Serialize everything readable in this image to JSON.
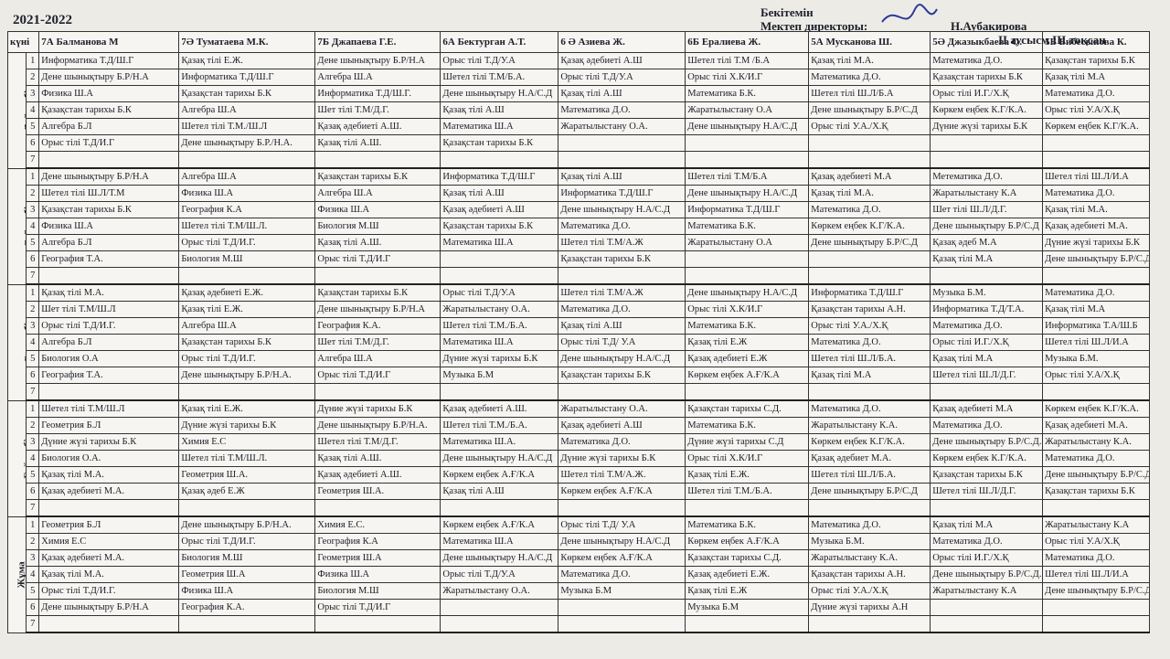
{
  "header": {
    "year": "2021-2022",
    "approve": "Бекітемін",
    "director_label": "Мектеп директоры:",
    "director_name": "Н.Аубакирова",
    "term": "II аусысм III тоқсан"
  },
  "table": {
    "day_header": "күні",
    "classes": [
      "7А Балманова М",
      "7Ә Туматаева М.К.",
      "7Б Джапаева Г.Е.",
      "6А Бектурган А.Т.",
      "6 Ә Азиева Ж.",
      "6Б Ералиева Ж.",
      "5А Мусканова Ш.",
      "5Ә Джазыкбаева О.",
      "5Б Бибесынова К."
    ],
    "lesson_numbers": [
      1,
      2,
      3,
      4,
      5,
      6,
      7
    ],
    "days": [
      {
        "name": "Дүйсенбі",
        "lessons": [
          [
            "Информатика Т.Д/Ш.Г",
            "Қазақ тілі Е.Ж.",
            "Дене шынықтыру Б.Р/Н.А",
            "Орыс тілі Т.Д/У.А",
            "Қазақ әдебиеті А.Ш",
            "Шетел тілі Т.М /Б.А",
            "Қазақ тілі М.А.",
            "Математика Д.О.",
            "Қазақстан тарихы Б.К"
          ],
          [
            "Дене шынықтыру Б.Р/Н.А",
            "Информатика Т.Д/Ш.Г",
            "Алгебра Ш.А",
            "Шетел тілі Т.М/Б.А.",
            "Орыс тілі Т.Д/У.А",
            "Орыс тілі Х.К/И.Г",
            "Математика Д.О.",
            "Қазақстан тарихы Б.К",
            "Қазақ тілі М.А"
          ],
          [
            "Физика Ш.А",
            "Қазақстан тарихы Б.К",
            "Информатика Т.Д/Ш.Г.",
            "Дене шынықтыру Н.А/С.Д",
            "Қазақ тілі А.Ш",
            "Математика Б.К.",
            "Шетел тілі Ш.Л/Б.А",
            "Орыс тілі И.Г./Х.Қ",
            "Математика Д.О."
          ],
          [
            "Қазақстан тарихы Б.К",
            "Алгебра Ш.А",
            "Шет тілі Т.М/Д.Г.",
            "Қазақ тілі А.Ш",
            "Математика Д.О.",
            "Жаратылыстану О.А",
            "Дене шынықтыру Б.Р/С.Д",
            "Көркем еңбек К.Г/К.А.",
            "Орыс тілі У.А/Х.Қ"
          ],
          [
            "Алгебра Б.Л",
            "Шетел тілі Т.М./Ш.Л",
            "Қазақ әдебиеті А.Ш.",
            "Математика Ш.А",
            "Жаратылыстану О.А.",
            "Дене шынықтыру Н.А/С.Д",
            "Орыс тілі У.А./Х.Қ",
            "Дүние жүзі тарихы Б.К",
            "Көркем еңбек К.Г/К.А."
          ],
          [
            "Орыс тілі Т.Д/И.Г",
            "Дене шынықтыру Б.Р./Н.А.",
            "Қазақ тілі А.Ш.",
            "Қазақстан тарихы Б.К",
            null,
            null,
            null,
            null,
            null
          ],
          [
            null,
            null,
            null,
            null,
            null,
            null,
            null,
            null,
            null
          ]
        ]
      },
      {
        "name": "Сейсенбі",
        "lessons": [
          [
            "Дене шынықтыру Б.Р/Н.А",
            "Алгебра Ш.А",
            "Қазақстан тарихы Б.К",
            "Информатика Т.Д/Ш.Г",
            "Қазақ тілі А.Ш",
            "Шетел тілі Т.М/Б.А",
            "Қазақ әдебиеті М.А",
            "Метематика Д.О.",
            "Шетел тілі Ш.Л/И.А"
          ],
          [
            "Шетел тілі Ш.Л/Т.М",
            "Физика Ш.А",
            "Алгебра Ш.А",
            "Қазақ тілі А.Ш",
            "Информатика Т.Д/Ш.Г",
            "Дене шынықтыру Н.А/С.Д",
            "Қазақ тілі М.А.",
            "Жаратылыстану К.А",
            "Математика Д.О."
          ],
          [
            "Қазақстан тарихы Б.К",
            "География К.А",
            "Физика Ш.А",
            "Қазақ әдебиеті А.Ш",
            "Дене шынықтыру Н.А/С.Д",
            "Информатика Т.Д/Ш.Г",
            "Математика Д.О.",
            "Шет тілі Ш.Л/Д.Г.",
            "Қазақ тілі М.А."
          ],
          [
            "Физика Ш.А",
            "Шетел тілі Т.М/Ш.Л.",
            "Биология М.Ш",
            "Қазақстан тарихы Б.К",
            "Математика Д.О.",
            "Математика Б.К.",
            "Көркем еңбек К.Г/К.А.",
            "Дене шынықтыру Б.Р/С.Д",
            "Қазақ әдебиеті М.А."
          ],
          [
            "Алгебра Б.Л",
            "Орыс тілі Т.Д/И.Г.",
            "Қазақ тілі А.Ш.",
            "Математика Ш.А",
            "Шетел тілі Т.М/А.Ж",
            "Жаратылыстану О.А",
            "Дене шынықтыру Б.Р/С.Д",
            "Қазақ әдеб М.А",
            "Дүние жүзі тарихы Б.К"
          ],
          [
            "География Т.А.",
            "Биология М.Ш",
            "Орыс тілі Т.Д/И.Г",
            null,
            "Қазақстан тарихы Б.К",
            null,
            null,
            "Қазақ тілі М.А",
            "Дене шынықтыру Б.Р/С.Д."
          ],
          [
            null,
            null,
            null,
            null,
            null,
            null,
            null,
            null,
            null
          ]
        ]
      },
      {
        "name": "Сәрсенбі",
        "lessons": [
          [
            "Қазақ тілі М.А.",
            "Қазақ әдебиеті Е.Ж.",
            "Қазақстан тарихы Б.К",
            "Орыс тілі Т.Д/У.А",
            "Шетел тілі Т.М/А.Ж",
            "Дене шынықтыру Н.А/С.Д",
            "Информатика Т.Д/Ш.Г",
            "Музыка Б.М.",
            "Математика Д.О."
          ],
          [
            "Шет тілі Т.М/Ш.Л",
            "Қазақ тілі Е.Ж.",
            "Дене шынықтыру Б.Р/Н.А",
            "Жаратылыстану О.А.",
            "Математика Д.О.",
            "Орыс тілі Х.К/И.Г",
            "Қазақстан тарихы А.Н.",
            "Информатика Т.Д/Т.А.",
            "Қазақ тілі М.А"
          ],
          [
            "Орыс тілі Т.Д/И.Г.",
            "Алгебра Ш.А",
            "География К.А.",
            "Шетел тілі Т.М./Б.А.",
            "Қазақ тілі А.Ш",
            "Математика Б.К.",
            "Орыс тілі У.А./Х.Қ",
            "Математика Д.О.",
            "Информатика Т.А/Ш.Б"
          ],
          [
            "Алгебра Б.Л",
            "Қазақстан тарихы Б.К",
            "Шет тілі Т.М/Д.Г.",
            "Математика Ш.А",
            "Орыс тілі Т.Д/ У.А",
            "Қазақ тілі Е.Ж",
            "Математика Д.О.",
            "Орыс тілі И.Г./Х.Қ",
            "Шетел тілі Ш.Л/И.А"
          ],
          [
            "Биология О.А",
            "Орыс тілі Т.Д/И.Г.",
            "Алгебра Ш.А",
            "Дүние жүзі тарихы Б.К",
            "Дене шынықтыру Н.А/С.Д",
            "Қазақ әдебиеті Е.Ж",
            "Шетел тілі Ш.Л/Б.А.",
            "Қазақ тілі М.А",
            "Музыка Б.М."
          ],
          [
            "География Т.А.",
            "Дене шынықтыру Б.Р/Н.А.",
            "Орыс тілі Т.Д/И.Г",
            "Музыка Б.М",
            "Қазақстан тарихы Б.К",
            "Көркем еңбек А.Ғ/К.А",
            "Қазақ тілі М.А",
            "Шетел тілі Ш.Л/Д.Г.",
            "Орыс тілі У.А/Х.Қ"
          ],
          [
            null,
            null,
            null,
            null,
            null,
            null,
            null,
            null,
            null
          ]
        ]
      },
      {
        "name": "Бейсенбі",
        "lessons": [
          [
            "Шетел тілі Т.М/Ш.Л",
            "Қазақ тілі Е.Ж.",
            "Дүние жүзі тарихы Б.К",
            "Қазақ әдебиеті А.Ш.",
            "Жаратылыстану О.А.",
            "Қазақстан тарихы С.Д.",
            "Математика Д.О.",
            "Қазақ әдебиеті М.А",
            "Көркем еңбек К.Г/К.А."
          ],
          [
            "Геометрия Б.Л",
            "Дүние жүзі тарихы Б.К",
            "Дене шынықтыру Б.Р/Н.А.",
            "Шетел тілі Т.М./Б.А.",
            "Қазақ әдебиеті А.Ш",
            "Математика Б.К.",
            "Жаратылыстану К.А.",
            "Математика Д.О.",
            "Қазақ әдебиеті М.А."
          ],
          [
            "Дүние жүзі тарихы Б.К",
            "Химия Е.С",
            "Шетел тілі Т.М/Д.Г.",
            "Математика Ш.А.",
            "Математика Д.О.",
            "Дүние жүзі тарихы С.Д",
            "Көркем еңбек К.Г/К.А.",
            "Дене шынықтыру Б.Р/С.Д.",
            "Жаратылыстану К.А."
          ],
          [
            "Биология О.А.",
            "Шетел тілі Т.М/Ш.Л.",
            "Қазақ тілі А.Ш.",
            "Дене шынықтыру Н.А/С.Д",
            "Дүние жүзі тарихы Б.К",
            "Орыс тілі Х.К/И.Г",
            "Қазақ әдебиет М.А.",
            "Көркем еңбек К.Г/К.А.",
            "Математика Д.О."
          ],
          [
            "Қазақ тілі М.А.",
            "Геометрия Ш.А.",
            "Қазақ әдебиеті А.Ш.",
            "Көркем еңбек А.Ғ/К.А",
            "Шетел тілі Т.М/А.Ж.",
            "Қазақ тілі Е.Ж.",
            "Шетел тілі Ш.Л/Б.А.",
            "Қазақстан тарихы Б.К",
            "Дене шынықтыру Б.Р/С.Д"
          ],
          [
            "Қазақ әдебиеті М.А.",
            "Қазақ әдеб Е.Ж",
            "Геометрия Ш.А.",
            "Қазақ тілі А.Ш",
            "Көркем еңбек А.Ғ/К.А",
            "Шетел тілі Т.М./Б.А.",
            "Дене шынықтыру Б.Р/С.Д",
            "Шетел тілі Ш.Л/Д.Г.",
            "Қазақстан тарихы Б.К"
          ],
          [
            null,
            null,
            null,
            null,
            null,
            null,
            null,
            null,
            null
          ]
        ]
      },
      {
        "name": "Жұма",
        "lessons": [
          [
            "Геометрия Б.Л",
            "Дене шынықтыру Б.Р/Н.А.",
            "Химия Е.С.",
            "Көркем еңбек А.Ғ/К.А",
            "Орыс тілі Т.Д/ У.А",
            "Математика Б.К.",
            "Математика Д.О.",
            "Қазақ тілі М.А",
            "Жаратылыстану К.А"
          ],
          [
            "Химия Е.С",
            "Орыс тілі Т.Д/И.Г.",
            "География К.А",
            "Математика Ш.А",
            "Дене шынықтыру Н.А/С.Д",
            "Көркем еңбек А.Ғ/К.А",
            "Музыка Б.М.",
            "Математика Д.О.",
            "Орыс тілі У.А/Х.Қ"
          ],
          [
            "Қазақ әдебиеті М.А.",
            "Биология М.Ш",
            "Геометрия Ш.А",
            "Дене шынықтыру Н.А/С.Д",
            "Көркем еңбек А.Ғ/К.А",
            "Қазақстан тарихы С.Д.",
            "Жаратылыстану К.А.",
            "Орыс тілі И.Г./Х.Қ",
            "Математика Д.О."
          ],
          [
            "Қазақ тілі М.А.",
            "Геометрия Ш.А",
            "Физика Ш.А",
            "Орыс тілі Т.Д/У.А",
            "Математика Д.О.",
            "Қазақ әдебиеті Е.Ж.",
            "Қазақстан тарихы А.Н.",
            "Дене шынықтыру Б.Р/С.Д.",
            "Шетел тілі Ш.Л/И.А"
          ],
          [
            "Орыс тілі Т.Д/И.Г.",
            "Физика Ш.А",
            "Биология М.Ш",
            "Жаратылыстану О.А.",
            "Музыка Б.М",
            "Қазақ тілі Е.Ж",
            "Орыс тілі У.А./Х.Қ",
            "Жаратылыстану К.А",
            "Дене шынықтыру Б.Р/С.Д."
          ],
          [
            "Дене шынықтыру Б.Р/Н.А",
            "География К.А.",
            "Орыс тілі Т.Д/И.Г",
            null,
            null,
            "Музыка Б.М",
            "Дүние жүзі тарихы А.Н",
            null,
            null
          ],
          [
            null,
            null,
            null,
            null,
            null,
            null,
            null,
            null,
            null
          ]
        ]
      }
    ]
  }
}
